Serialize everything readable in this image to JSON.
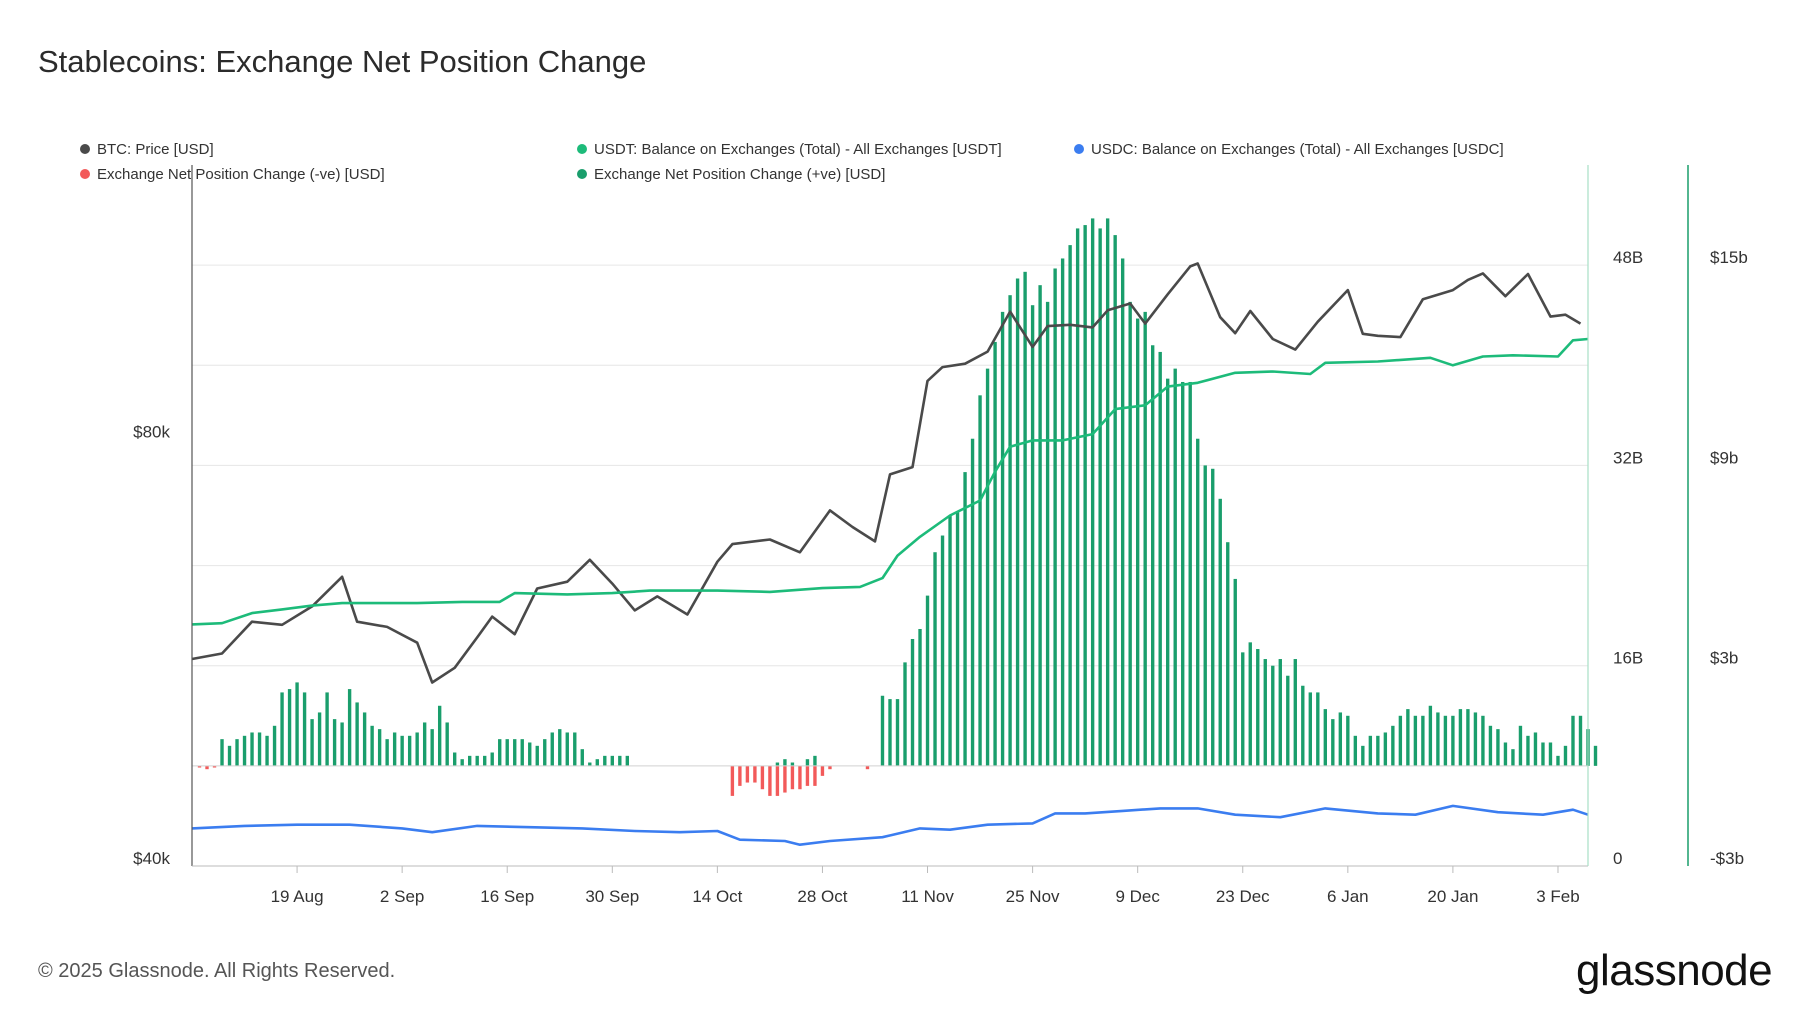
{
  "title": "Stablecoins: Exchange Net Position Change",
  "legend": [
    {
      "label": "BTC: Price [USD]",
      "color": "#4a4a4a"
    },
    {
      "label": "USDT: Balance on Exchanges (Total) - All Exchanges [USDT]",
      "color": "#1dbb7a"
    },
    {
      "label": "USDC: Balance on Exchanges (Total) - All Exchanges [USDC]",
      "color": "#3b7df0"
    },
    {
      "label": "Exchange Net Position Change (-ve) [USD]",
      "color": "#f25a5a"
    },
    {
      "label": "Exchange Net Position Change (+ve) [USD]",
      "color": "#1a9e6c"
    }
  ],
  "footer": "© 2025 Glassnode. All Rights Reserved.",
  "logo": "glassnode",
  "chart_data": {
    "type": "line+bar",
    "x_start": "2024-08-05",
    "x_end": "2025-02-07",
    "x_tick_labels": [
      "19 Aug",
      "2 Sep",
      "16 Sep",
      "30 Sep",
      "14 Oct",
      "28 Oct",
      "11 Nov",
      "25 Nov",
      "9 Dec",
      "23 Dec",
      "6 Jan",
      "20 Jan",
      "3 Feb"
    ],
    "x_tick_dates": [
      "2024-08-19",
      "2024-09-02",
      "2024-09-16",
      "2024-09-30",
      "2024-10-14",
      "2024-10-28",
      "2024-11-11",
      "2024-11-25",
      "2024-12-09",
      "2024-12-23",
      "2025-01-06",
      "2025-01-20",
      "2025-02-03"
    ],
    "axes": {
      "btc_price": {
        "position": "left",
        "scale": "log",
        "tick_labels": [
          "$40k",
          "$80k"
        ],
        "tick_values": [
          40000,
          80000
        ],
        "range": [
          40000,
          125000
        ]
      },
      "balance": {
        "position": "right-inner",
        "tick_labels": [
          "0",
          "16B",
          "32B",
          "48B"
        ],
        "tick_values": [
          0,
          16,
          32,
          48
        ],
        "range": [
          0,
          56
        ],
        "unit": "B"
      },
      "net_position": {
        "position": "right-outer",
        "tick_labels": [
          "-$3b",
          "$3b",
          "$9b",
          "$15b"
        ],
        "tick_values": [
          -3,
          3,
          9,
          15
        ],
        "range": [
          -3,
          18
        ],
        "unit": "b"
      }
    },
    "grid": true,
    "legend_position": "top",
    "series": [
      {
        "name": "BTC: Price [USD]",
        "kind": "line",
        "axis": "btc_price",
        "color": "#4a4a4a",
        "points": [
          [
            "2024-08-05",
            56000
          ],
          [
            "2024-08-09",
            56500
          ],
          [
            "2024-08-13",
            59500
          ],
          [
            "2024-08-17",
            59200
          ],
          [
            "2024-08-21",
            61000
          ],
          [
            "2024-08-25",
            64000
          ],
          [
            "2024-08-27",
            59500
          ],
          [
            "2024-08-31",
            59000
          ],
          [
            "2024-09-04",
            57500
          ],
          [
            "2024-09-06",
            53900
          ],
          [
            "2024-09-09",
            55200
          ],
          [
            "2024-09-12",
            58000
          ],
          [
            "2024-09-14",
            60000
          ],
          [
            "2024-09-17",
            58300
          ],
          [
            "2024-09-20",
            62800
          ],
          [
            "2024-09-24",
            63500
          ],
          [
            "2024-09-27",
            65800
          ],
          [
            "2024-09-30",
            63300
          ],
          [
            "2024-10-03",
            60600
          ],
          [
            "2024-10-06",
            62000
          ],
          [
            "2024-10-10",
            60200
          ],
          [
            "2024-10-14",
            65600
          ],
          [
            "2024-10-16",
            67500
          ],
          [
            "2024-10-21",
            68000
          ],
          [
            "2024-10-25",
            66600
          ],
          [
            "2024-10-29",
            71300
          ],
          [
            "2024-11-01",
            69400
          ],
          [
            "2024-11-04",
            67800
          ],
          [
            "2024-11-06",
            75600
          ],
          [
            "2024-11-09",
            76500
          ],
          [
            "2024-11-11",
            88000
          ],
          [
            "2024-11-13",
            90000
          ],
          [
            "2024-11-16",
            90500
          ],
          [
            "2024-11-19",
            92300
          ],
          [
            "2024-11-22",
            98500
          ],
          [
            "2024-11-25",
            93000
          ],
          [
            "2024-11-27",
            96200
          ],
          [
            "2024-11-30",
            96400
          ],
          [
            "2024-12-03",
            96000
          ],
          [
            "2024-12-05",
            98700
          ],
          [
            "2024-12-08",
            99800
          ],
          [
            "2024-12-10",
            96600
          ],
          [
            "2024-12-13",
            101300
          ],
          [
            "2024-12-16",
            106000
          ],
          [
            "2024-12-17",
            106500
          ],
          [
            "2024-12-20",
            97600
          ],
          [
            "2024-12-22",
            95100
          ],
          [
            "2024-12-24",
            98600
          ],
          [
            "2024-12-27",
            94200
          ],
          [
            "2024-12-30",
            92600
          ],
          [
            "2025-01-02",
            96900
          ],
          [
            "2025-01-06",
            102000
          ],
          [
            "2025-01-08",
            95000
          ],
          [
            "2025-01-10",
            94700
          ],
          [
            "2025-01-13",
            94500
          ],
          [
            "2025-01-16",
            100500
          ],
          [
            "2025-01-20",
            102000
          ],
          [
            "2025-01-22",
            103700
          ],
          [
            "2025-01-24",
            104800
          ],
          [
            "2025-01-27",
            101000
          ],
          [
            "2025-01-30",
            104700
          ],
          [
            "2025-02-02",
            97700
          ],
          [
            "2025-02-04",
            98000
          ],
          [
            "2025-02-06",
            96600
          ]
        ]
      },
      {
        "name": "USDT: Balance on Exchanges (Total) - All Exchanges [USDT]",
        "kind": "line",
        "axis": "balance",
        "color": "#1dbb7a",
        "points": [
          [
            "2024-08-05",
            19.3
          ],
          [
            "2024-08-09",
            19.4
          ],
          [
            "2024-08-13",
            20.2
          ],
          [
            "2024-08-17",
            20.5
          ],
          [
            "2024-08-21",
            20.8
          ],
          [
            "2024-08-25",
            21.0
          ],
          [
            "2024-08-31",
            21.0
          ],
          [
            "2024-09-04",
            21.0
          ],
          [
            "2024-09-10",
            21.1
          ],
          [
            "2024-09-15",
            21.1
          ],
          [
            "2024-09-17",
            21.8
          ],
          [
            "2024-09-24",
            21.7
          ],
          [
            "2024-09-30",
            21.8
          ],
          [
            "2024-10-05",
            22.0
          ],
          [
            "2024-10-14",
            22.0
          ],
          [
            "2024-10-21",
            21.9
          ],
          [
            "2024-10-28",
            22.2
          ],
          [
            "2024-11-02",
            22.3
          ],
          [
            "2024-11-05",
            23.0
          ],
          [
            "2024-11-07",
            24.8
          ],
          [
            "2024-11-10",
            26.3
          ],
          [
            "2024-11-14",
            28.0
          ],
          [
            "2024-11-18",
            29.2
          ],
          [
            "2024-11-20",
            31.5
          ],
          [
            "2024-11-22",
            33.5
          ],
          [
            "2024-11-25",
            34.0
          ],
          [
            "2024-11-29",
            34.0
          ],
          [
            "2024-12-03",
            34.5
          ],
          [
            "2024-12-06",
            36.5
          ],
          [
            "2024-12-10",
            36.8
          ],
          [
            "2024-12-13",
            38.3
          ],
          [
            "2024-12-17",
            38.6
          ],
          [
            "2024-12-22",
            39.4
          ],
          [
            "2024-12-27",
            39.5
          ],
          [
            "2025-01-01",
            39.3
          ],
          [
            "2025-01-03",
            40.2
          ],
          [
            "2025-01-10",
            40.3
          ],
          [
            "2025-01-17",
            40.6
          ],
          [
            "2025-01-20",
            40.0
          ],
          [
            "2025-01-24",
            40.7
          ],
          [
            "2025-01-28",
            40.8
          ],
          [
            "2025-02-03",
            40.7
          ],
          [
            "2025-02-05",
            42.0
          ],
          [
            "2025-02-07",
            42.1
          ]
        ]
      },
      {
        "name": "USDC: Balance on Exchanges (Total) - All Exchanges [USDC]",
        "kind": "line",
        "axis": "balance",
        "color": "#3b7df0",
        "points": [
          [
            "2024-08-05",
            3.0
          ],
          [
            "2024-08-12",
            3.2
          ],
          [
            "2024-08-19",
            3.3
          ],
          [
            "2024-08-26",
            3.3
          ],
          [
            "2024-09-02",
            3.0
          ],
          [
            "2024-09-06",
            2.7
          ],
          [
            "2024-09-12",
            3.2
          ],
          [
            "2024-09-19",
            3.1
          ],
          [
            "2024-09-26",
            3.0
          ],
          [
            "2024-10-03",
            2.8
          ],
          [
            "2024-10-09",
            2.7
          ],
          [
            "2024-10-14",
            2.8
          ],
          [
            "2024-10-17",
            2.1
          ],
          [
            "2024-10-23",
            2.0
          ],
          [
            "2024-10-25",
            1.7
          ],
          [
            "2024-10-29",
            2.0
          ],
          [
            "2024-11-05",
            2.3
          ],
          [
            "2024-11-10",
            3.0
          ],
          [
            "2024-11-14",
            2.9
          ],
          [
            "2024-11-19",
            3.3
          ],
          [
            "2024-11-25",
            3.4
          ],
          [
            "2024-11-28",
            4.2
          ],
          [
            "2024-12-02",
            4.2
          ],
          [
            "2024-12-07",
            4.4
          ],
          [
            "2024-12-12",
            4.6
          ],
          [
            "2024-12-17",
            4.6
          ],
          [
            "2024-12-22",
            4.1
          ],
          [
            "2024-12-28",
            3.9
          ],
          [
            "2025-01-03",
            4.6
          ],
          [
            "2025-01-10",
            4.2
          ],
          [
            "2025-01-15",
            4.1
          ],
          [
            "2025-01-20",
            4.8
          ],
          [
            "2025-01-26",
            4.3
          ],
          [
            "2025-02-01",
            4.1
          ],
          [
            "2025-02-05",
            4.5
          ],
          [
            "2025-02-07",
            4.1
          ]
        ]
      },
      {
        "name": "Exchange Net Position Change (-ve) [USD]",
        "kind": "bar",
        "axis": "net_position",
        "color": "#f25a5a",
        "points": [
          [
            "2024-08-06",
            -0.05
          ],
          [
            "2024-08-07",
            -0.1
          ],
          [
            "2024-08-08",
            -0.05
          ],
          [
            "2024-10-16",
            -0.9
          ],
          [
            "2024-10-17",
            -0.6
          ],
          [
            "2024-10-18",
            -0.5
          ],
          [
            "2024-10-19",
            -0.5
          ],
          [
            "2024-10-20",
            -0.7
          ],
          [
            "2024-10-21",
            -0.9
          ],
          [
            "2024-10-22",
            -0.9
          ],
          [
            "2024-10-23",
            -0.8
          ],
          [
            "2024-10-24",
            -0.7
          ],
          [
            "2024-10-25",
            -0.7
          ],
          [
            "2024-10-26",
            -0.6
          ],
          [
            "2024-10-27",
            -0.6
          ],
          [
            "2024-10-28",
            -0.3
          ],
          [
            "2024-10-29",
            -0.1
          ],
          [
            "2024-11-03",
            -0.1
          ]
        ]
      },
      {
        "name": "Exchange Net Position Change (+ve) [USD]",
        "kind": "bar",
        "axis": "net_position",
        "color": "#1a9e6c",
        "values_start": "2024-08-09",
        "values": [
          0.8,
          0.6,
          0.8,
          0.9,
          1.0,
          1.0,
          0.9,
          1.2,
          2.2,
          2.3,
          2.5,
          2.2,
          1.4,
          1.6,
          2.2,
          1.4,
          1.3,
          2.3,
          1.9,
          1.6,
          1.2,
          1.1,
          0.8,
          1.0,
          0.9,
          0.9,
          1.0,
          1.3,
          1.1,
          1.8,
          1.3,
          0.4,
          0.2,
          0.3,
          0.3,
          0.3,
          0.4,
          0.8,
          0.8,
          0.8,
          0.8,
          0.7,
          0.6,
          0.8,
          1.0,
          1.1,
          1.0,
          1.0,
          0.5,
          0.1,
          0.2,
          0.3,
          0.3,
          0.3,
          0.3,
          0.0,
          0.0,
          0.0,
          0.0,
          0.0,
          0.0,
          0.0,
          0.0,
          0.0,
          0.0,
          0.0,
          0.0,
          0.0,
          0.0,
          0.0,
          0.0,
          0.0,
          0.0,
          0.0,
          0.1,
          0.2,
          0.1,
          0.0,
          0.2,
          0.3,
          0.0,
          0.0,
          0.0,
          0.0,
          0.0,
          0.0,
          0.0,
          0.0,
          2.1,
          2.0,
          2.0,
          3.1,
          3.8,
          4.1,
          5.1,
          6.4,
          6.9,
          7.5,
          7.6,
          8.8,
          9.8,
          11.1,
          11.9,
          12.7,
          13.6,
          14.1,
          14.6,
          14.8,
          13.8,
          14.4,
          13.9,
          14.9,
          15.2,
          15.6,
          16.1,
          16.2,
          16.4,
          16.1,
          16.4,
          15.9,
          15.2,
          13.9,
          13.4,
          13.6,
          12.6,
          12.4,
          11.6,
          11.9,
          11.5,
          11.5,
          9.8,
          9.0,
          8.9,
          8.0,
          6.7,
          5.6,
          3.4,
          3.7,
          3.5,
          3.2,
          3.0,
          3.2,
          2.7,
          3.2,
          2.4,
          2.2,
          2.2,
          1.7,
          1.4,
          1.6,
          1.5,
          0.9,
          0.6,
          0.9,
          0.9,
          1.0,
          1.2,
          1.5,
          1.7,
          1.5,
          1.5,
          1.8,
          1.6,
          1.5,
          1.5,
          1.7,
          1.7,
          1.6,
          1.5,
          1.2,
          1.1,
          0.7,
          0.5,
          1.2,
          0.9,
          1.0,
          0.7,
          0.7,
          0.3,
          0.6,
          1.5,
          1.5,
          1.1,
          0.6
        ]
      }
    ]
  }
}
